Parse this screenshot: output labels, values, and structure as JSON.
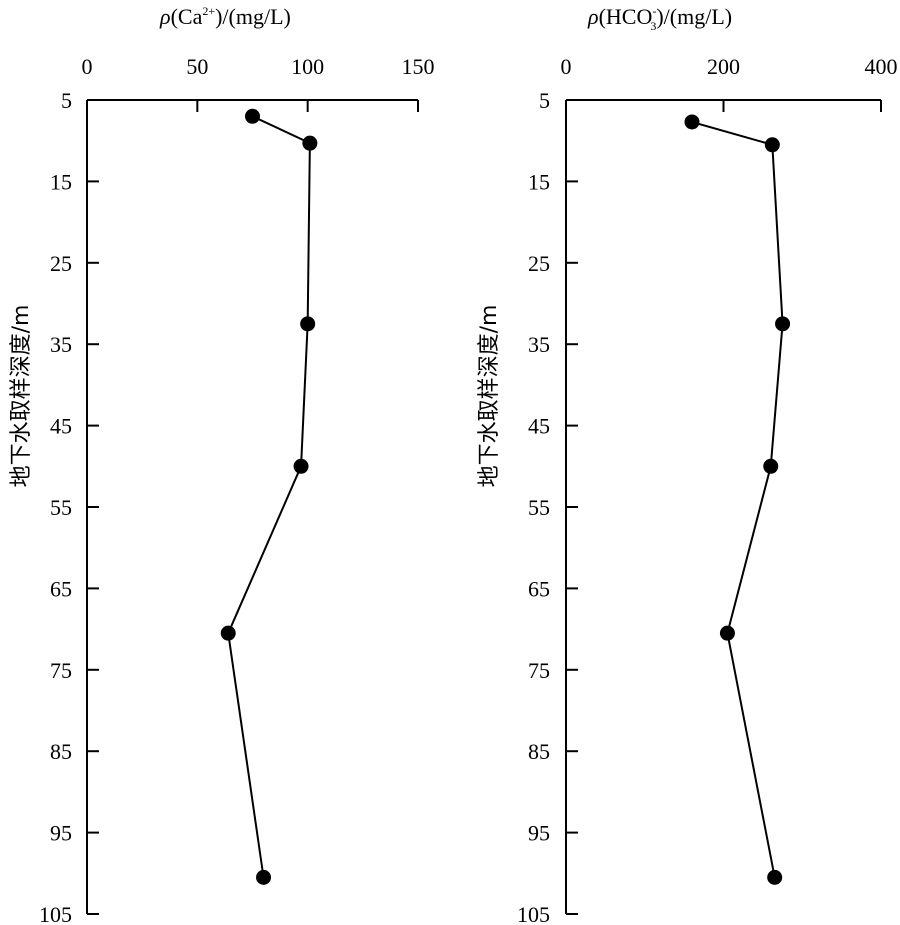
{
  "chart_data": [
    {
      "type": "line",
      "title_parts": {
        "rho": "ρ",
        "prefix": "(Ca",
        "superscript": "2+",
        "suffix": ")/(mg/L)"
      },
      "xlabel": "ρ(Ca2+)/(mg/L)",
      "ylabel": "地下水取样深度/m",
      "xlim": [
        0,
        150
      ],
      "ylim": [
        5,
        105
      ],
      "y_inverted": true,
      "x_ticks": [
        0,
        50,
        100,
        150
      ],
      "y_ticks": [
        5,
        15,
        25,
        35,
        45,
        55,
        65,
        75,
        85,
        95,
        105
      ],
      "x_axis_position": "top",
      "grid": false,
      "series": [
        {
          "points": [
            {
              "x": 75,
              "depth": 7
            },
            {
              "x": 101,
              "depth": 10.3
            },
            {
              "x": 100,
              "depth": 32.5
            },
            {
              "x": 97,
              "depth": 50
            },
            {
              "x": 64,
              "depth": 70.5
            },
            {
              "x": 80,
              "depth": 100.5
            }
          ]
        }
      ]
    },
    {
      "type": "line",
      "title_parts": {
        "rho": "ρ",
        "prefix": "(HCO",
        "superscript": "-",
        "subscript": "3",
        "suffix": ")/(mg/L)"
      },
      "xlabel": "ρ(HCO3-)/(mg/L)",
      "ylabel": "地下水取样深度/m",
      "xlim": [
        0,
        400
      ],
      "ylim": [
        5,
        105
      ],
      "y_inverted": true,
      "x_ticks": [
        0,
        200,
        400
      ],
      "y_ticks": [
        5,
        15,
        25,
        35,
        45,
        55,
        65,
        75,
        85,
        95,
        105
      ],
      "x_axis_position": "top",
      "grid": false,
      "series": [
        {
          "points": [
            {
              "x": 160,
              "depth": 7.7
            },
            {
              "x": 262,
              "depth": 10.5
            },
            {
              "x": 275,
              "depth": 32.5
            },
            {
              "x": 260,
              "depth": 50
            },
            {
              "x": 205,
              "depth": 70.5
            },
            {
              "x": 265,
              "depth": 100.5
            }
          ]
        }
      ]
    }
  ]
}
